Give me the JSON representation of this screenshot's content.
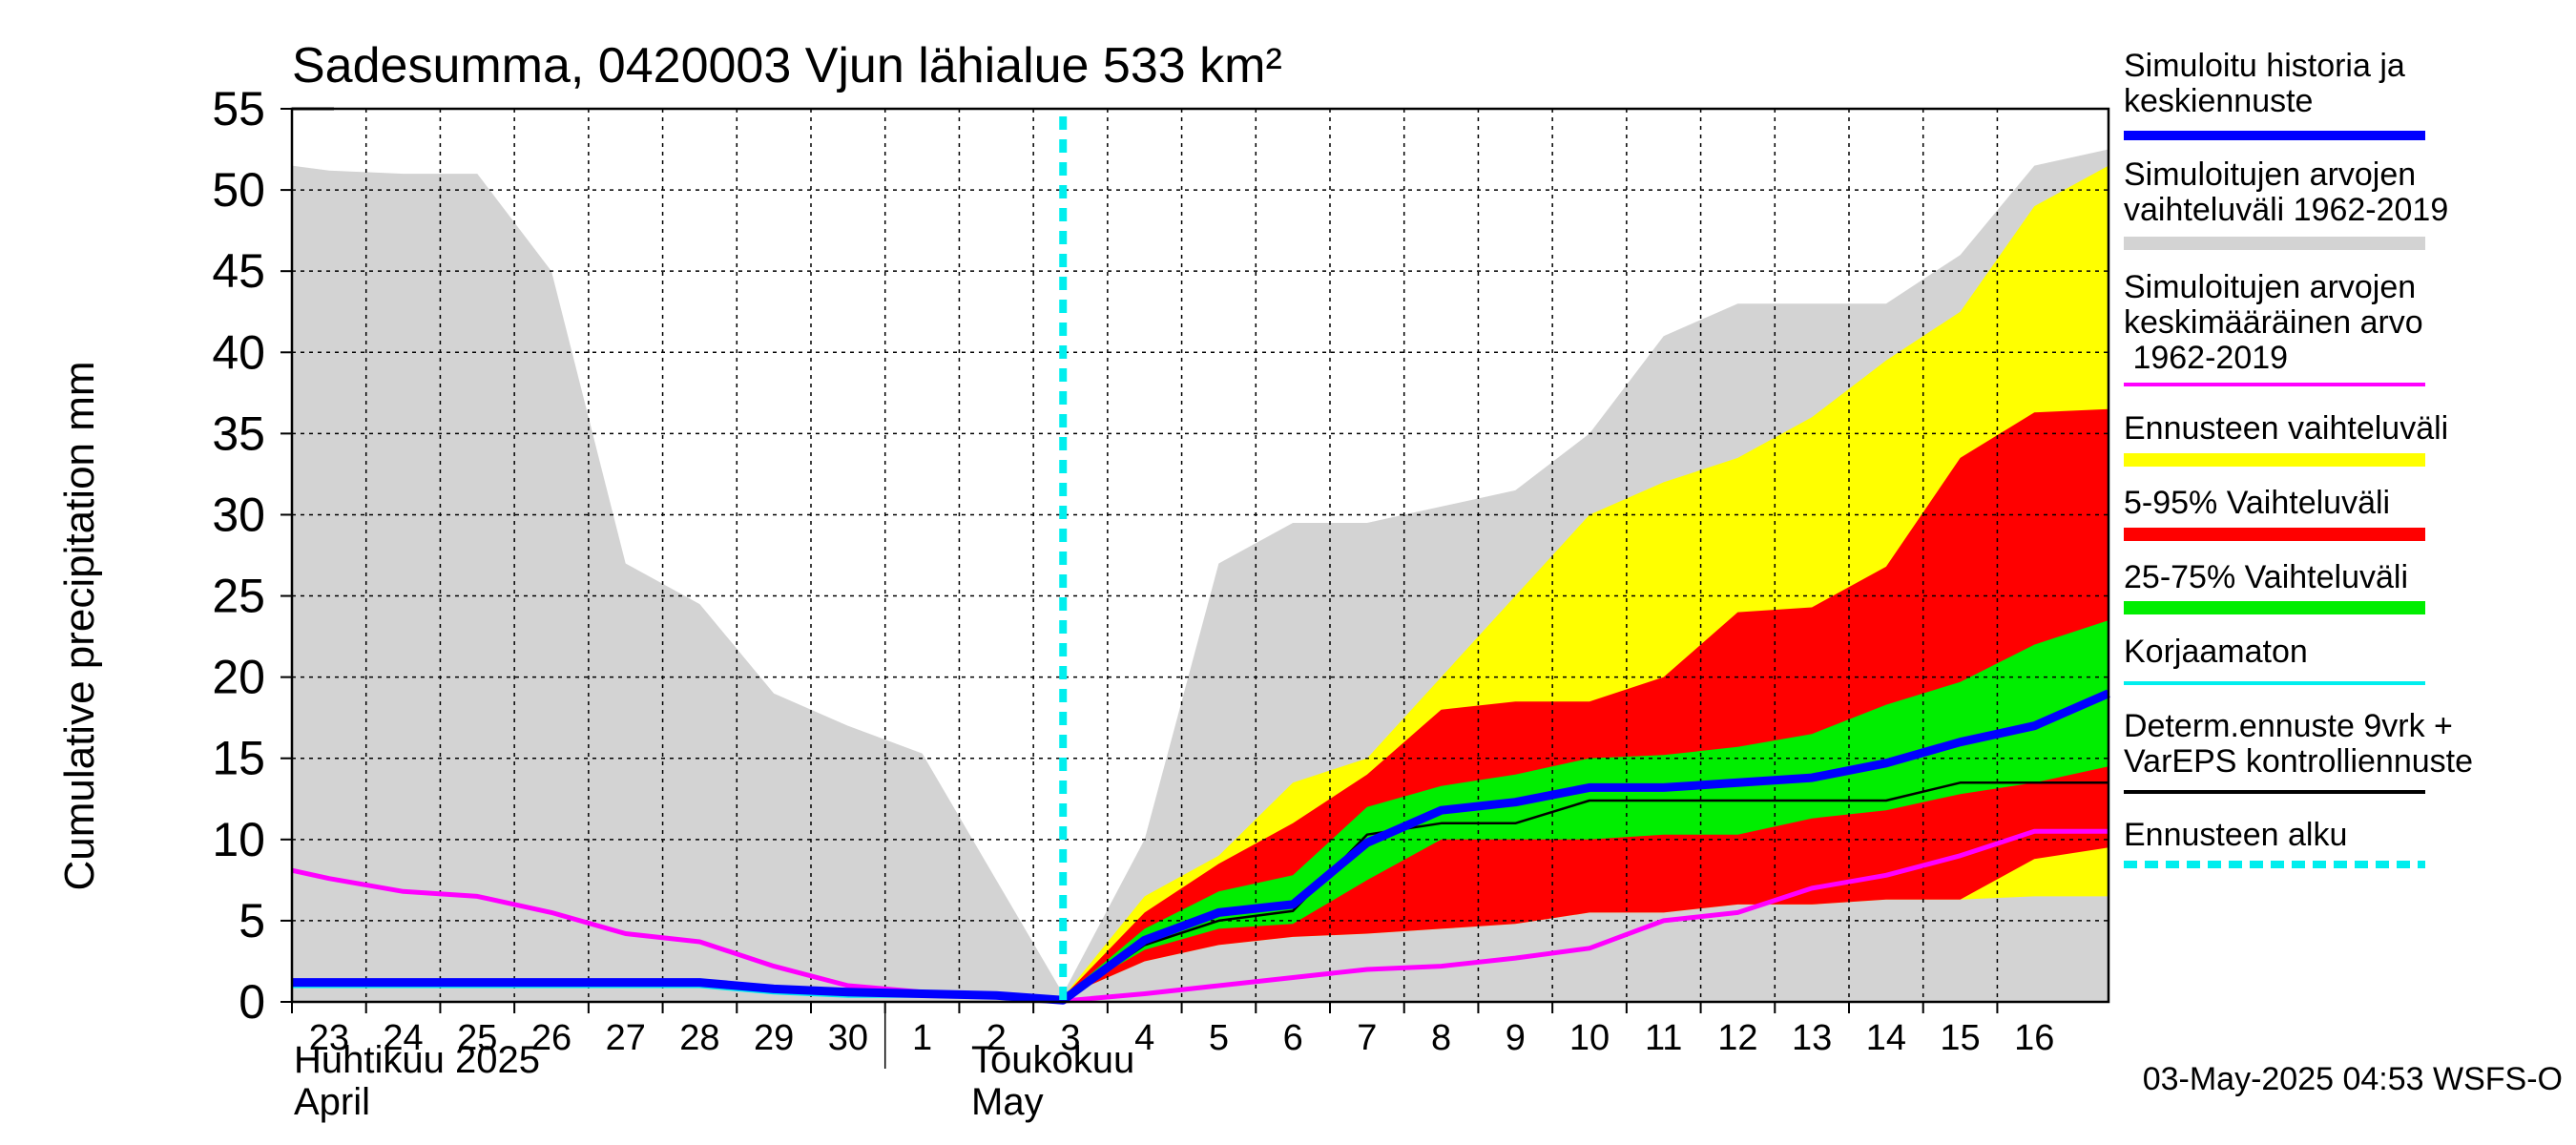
{
  "chart_data": {
    "type": "area",
    "title": "Sadesumma, 0420003 Vjun lähialue 533 km²",
    "ylabel": "Cumulative precipitation   mm",
    "ylim": [
      0,
      55
    ],
    "xlim": [
      22.5,
      47
    ],
    "y_ticks": [
      "0",
      "5",
      "10",
      "15",
      "20",
      "25",
      "30",
      "35",
      "40",
      "45",
      "50",
      "55"
    ],
    "x_ticks": [
      {
        "x": 23,
        "label": "23"
      },
      {
        "x": 24,
        "label": "24"
      },
      {
        "x": 25,
        "label": "25"
      },
      {
        "x": 26,
        "label": "26"
      },
      {
        "x": 27,
        "label": "27"
      },
      {
        "x": 28,
        "label": "28"
      },
      {
        "x": 29,
        "label": "29"
      },
      {
        "x": 30,
        "label": "30"
      },
      {
        "x": 31,
        "label": "1"
      },
      {
        "x": 32,
        "label": "2"
      },
      {
        "x": 33,
        "label": "3"
      },
      {
        "x": 34,
        "label": "4"
      },
      {
        "x": 35,
        "label": "5"
      },
      {
        "x": 36,
        "label": "6"
      },
      {
        "x": 37,
        "label": "7"
      },
      {
        "x": 38,
        "label": "8"
      },
      {
        "x": 39,
        "label": "9"
      },
      {
        "x": 40,
        "label": "10"
      },
      {
        "x": 41,
        "label": "11"
      },
      {
        "x": 42,
        "label": "12"
      },
      {
        "x": 43,
        "label": "13"
      },
      {
        "x": 44,
        "label": "14"
      },
      {
        "x": 45,
        "label": "15"
      },
      {
        "x": 46,
        "label": "16"
      }
    ],
    "month_labels": {
      "april_fi": "Huhtikuu  2025",
      "april_en": "April",
      "may_fi": "Toukokuu",
      "may_en": "May"
    },
    "forecast_start_x": 32.9,
    "bands": [
      {
        "name": "Simuloitujen arvojen vaihteluväli 1962-2019",
        "color": "#d3d3d3",
        "x": [
          22.5,
          23,
          24,
          25,
          26,
          27,
          28,
          29,
          30,
          31,
          32,
          32.9,
          34,
          35,
          36,
          37,
          38,
          39,
          40,
          41,
          42,
          43,
          44,
          45,
          46,
          47
        ],
        "upper": [
          51.5,
          51.2,
          51,
          51,
          45,
          27,
          24.5,
          19,
          17,
          15.3,
          7.5,
          0.5,
          10,
          27,
          29.5,
          29.5,
          30.5,
          31.5,
          35,
          41,
          43,
          43,
          43,
          46,
          51.5,
          52.5
        ],
        "lower": [
          0,
          0,
          0,
          0,
          0,
          0,
          0,
          0,
          0,
          0,
          0,
          0,
          0,
          0,
          0,
          0,
          0,
          0,
          0,
          0,
          0,
          0,
          0,
          0,
          0,
          0
        ]
      },
      {
        "name": "Ennusteen vaihteluväli",
        "color": "#ffff00",
        "x": [
          32.9,
          34,
          35,
          36,
          37,
          38,
          39,
          40,
          41,
          42,
          43,
          44,
          45,
          46,
          47
        ],
        "upper": [
          0.3,
          6.5,
          9,
          13.5,
          15,
          20,
          25,
          30,
          32,
          33.5,
          36,
          39.5,
          42.5,
          49,
          51.5
        ],
        "lower": [
          0.3,
          2.5,
          3.5,
          4,
          4.2,
          4.5,
          4.8,
          5.5,
          5.5,
          6,
          6,
          6.3,
          6.3,
          6.5,
          6.5
        ]
      },
      {
        "name": "5-95% Vaihteluväli",
        "color": "#ff0000",
        "x": [
          32.9,
          34,
          35,
          36,
          37,
          38,
          39,
          40,
          41,
          42,
          43,
          44,
          45,
          46,
          47
        ],
        "upper": [
          0.3,
          5.5,
          8.5,
          11,
          14,
          18,
          18.5,
          18.5,
          20,
          24,
          24.3,
          26.8,
          33.5,
          36.3,
          36.5
        ],
        "lower": [
          0.3,
          2.5,
          3.5,
          4,
          4.2,
          4.5,
          4.8,
          5.5,
          5.5,
          6,
          6,
          6.3,
          6.3,
          8.8,
          9.5
        ]
      },
      {
        "name": "25-75% Vaihteluväli",
        "color": "#00ee00",
        "x": [
          32.9,
          34,
          35,
          36,
          37,
          38,
          39,
          40,
          41,
          42,
          43,
          44,
          45,
          46,
          47
        ],
        "upper": [
          0.3,
          4.5,
          6.8,
          7.8,
          12,
          13.3,
          14,
          15,
          15.2,
          15.7,
          16.5,
          18.3,
          19.7,
          22,
          23.5
        ],
        "lower": [
          0.3,
          3.2,
          4.5,
          4.8,
          7.5,
          10,
          10,
          10,
          10.3,
          10.3,
          11.3,
          11.8,
          12.8,
          13.5,
          14.5
        ]
      }
    ],
    "series": [
      {
        "name": "Simuloitujen arvojen keskimääräinen arvo 1962-2019",
        "color": "#ff00ff",
        "width": 5,
        "x": [
          22.5,
          23,
          24,
          25,
          26,
          27,
          28,
          29,
          30,
          31,
          32,
          32.9,
          34,
          35,
          36,
          37,
          38,
          39,
          40,
          41,
          42,
          43,
          44,
          45,
          46,
          47
        ],
        "y": [
          8.1,
          7.6,
          6.8,
          6.5,
          5.5,
          4.2,
          3.7,
          2.2,
          1,
          0.6,
          0.3,
          0.05,
          0.5,
          1,
          1.5,
          2,
          2.2,
          2.7,
          3.3,
          5,
          5.5,
          7,
          7.8,
          9,
          10.5,
          10.5
        ]
      },
      {
        "name": "Korjaamaton",
        "color": "#00eeee",
        "width": 5,
        "x": [
          22.5,
          23,
          24,
          25,
          26,
          27,
          28,
          29,
          30,
          31,
          32,
          32.9
        ],
        "y": [
          1,
          1,
          1,
          1,
          1,
          1,
          1,
          0.6,
          0.4,
          0.4,
          0.3,
          0.1
        ]
      },
      {
        "name": "Simuloitu historia ja keskiennuste",
        "color": "#0000ff",
        "width": 9,
        "x": [
          22.5,
          23,
          24,
          25,
          26,
          27,
          28,
          29,
          30,
          31,
          32,
          32.9,
          34,
          35,
          36,
          37,
          38,
          39,
          40,
          41,
          42,
          43,
          44,
          45,
          46,
          47
        ],
        "y": [
          1.2,
          1.2,
          1.2,
          1.2,
          1.2,
          1.2,
          1.2,
          0.8,
          0.6,
          0.5,
          0.4,
          0.1,
          3.8,
          5.5,
          6,
          9.8,
          11.8,
          12.3,
          13.2,
          13.2,
          13.5,
          13.8,
          14.7,
          16,
          17,
          19
        ]
      },
      {
        "name": "Determ.ennuste 9vrk + VarEPS kontrolliennuste",
        "color": "#000000",
        "width": 2.5,
        "x": [
          32.9,
          34,
          35,
          36,
          37,
          38,
          39,
          40,
          41,
          42,
          43,
          44,
          45,
          46,
          47
        ],
        "y": [
          0.1,
          3.5,
          5,
          5.6,
          10.3,
          11,
          11,
          12.4,
          12.4,
          12.4,
          12.4,
          12.4,
          13.5,
          13.5,
          13.5
        ]
      }
    ],
    "legend": [
      {
        "label": "Simuloitu historia ja\nkeskiennuste",
        "color": "#0000ff",
        "style": "line"
      },
      {
        "label": "Simuloitujen arvojen\nvaihteluväli 1962-2019",
        "color": "#d3d3d3",
        "style": "band"
      },
      {
        "label": "Simuloitujen arvojen\nkeskimääräinen arvo\n   1962-2019",
        "color": "#ff00ff",
        "style": "thin"
      },
      {
        "label": "Ennusteen vaihteluväli",
        "color": "#ffff00",
        "style": "band"
      },
      {
        "label": "5-95% Vaihteluväli",
        "color": "#ff0000",
        "style": "band"
      },
      {
        "label": "25-75% Vaihteluväli",
        "color": "#00ee00",
        "style": "band"
      },
      {
        "label": "Korjaamaton",
        "color": "#00eeee",
        "style": "thin"
      },
      {
        "label": "Determ.ennuste 9vrk +\nVarEPS kontrolliennuste",
        "color": "#000000",
        "style": "thin"
      },
      {
        "label": "Ennusteen alku",
        "color": "#00eeee",
        "style": "dashed"
      }
    ],
    "footer": "03-May-2025 04:53 WSFS-O"
  }
}
